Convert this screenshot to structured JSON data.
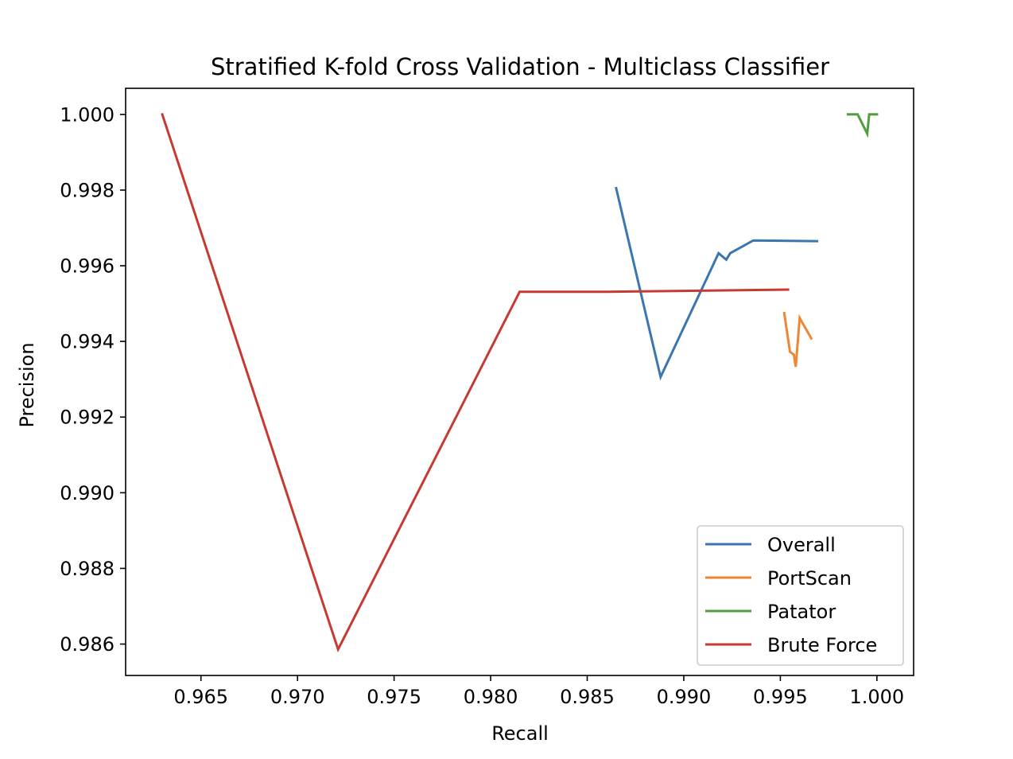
{
  "chart_data": {
    "type": "line",
    "title": "Stratified K-fold Cross Validation - Multiclass Classifier",
    "xlabel": "Recall",
    "ylabel": "Precision",
    "xlim": [
      0.9611,
      1.0019
    ],
    "ylim": [
      0.98517,
      1.00069
    ],
    "xticks": [
      0.965,
      0.97,
      0.975,
      0.98,
      0.985,
      0.99,
      0.995,
      1.0
    ],
    "xtick_labels": [
      "0.965",
      "0.970",
      "0.975",
      "0.980",
      "0.985",
      "0.990",
      "0.995",
      "1.000"
    ],
    "yticks": [
      0.986,
      0.988,
      0.99,
      0.992,
      0.994,
      0.996,
      0.998,
      1.0
    ],
    "ytick_labels": [
      "0.986",
      "0.988",
      "0.990",
      "0.992",
      "0.994",
      "0.996",
      "0.998",
      "1.000"
    ],
    "grid": false,
    "legend_position": "lower-right",
    "series": [
      {
        "name": "Overall",
        "color": "#3a76af",
        "points": [
          [
            0.9865,
            0.99805
          ],
          [
            0.9888,
            0.99306
          ],
          [
            0.9918,
            0.99633
          ],
          [
            0.9922,
            0.99616
          ],
          [
            0.9924,
            0.99633
          ],
          [
            0.9936,
            0.99667
          ],
          [
            0.9969,
            0.99665
          ]
        ]
      },
      {
        "name": "PortScan",
        "color": "#ef8636",
        "points": [
          [
            0.9952,
            0.99475
          ],
          [
            0.9955,
            0.99373
          ],
          [
            0.9957,
            0.99365
          ],
          [
            0.9958,
            0.99333
          ],
          [
            0.996,
            0.99462
          ],
          [
            0.9966,
            0.99408
          ]
        ]
      },
      {
        "name": "Patator",
        "color": "#519e3e",
        "points": [
          [
            0.9985,
            1.0
          ],
          [
            0.999,
            1.0
          ],
          [
            0.9995,
            0.99949
          ],
          [
            0.9996,
            1.0
          ],
          [
            1.0,
            1.0
          ]
        ]
      },
      {
        "name": "Brute Force",
        "color": "#c53a32",
        "points": [
          [
            0.963,
            1.0
          ],
          [
            0.9721,
            0.98586
          ],
          [
            0.9815,
            0.99531
          ],
          [
            0.986,
            0.99531
          ],
          [
            0.9954,
            0.99537
          ]
        ]
      }
    ]
  }
}
